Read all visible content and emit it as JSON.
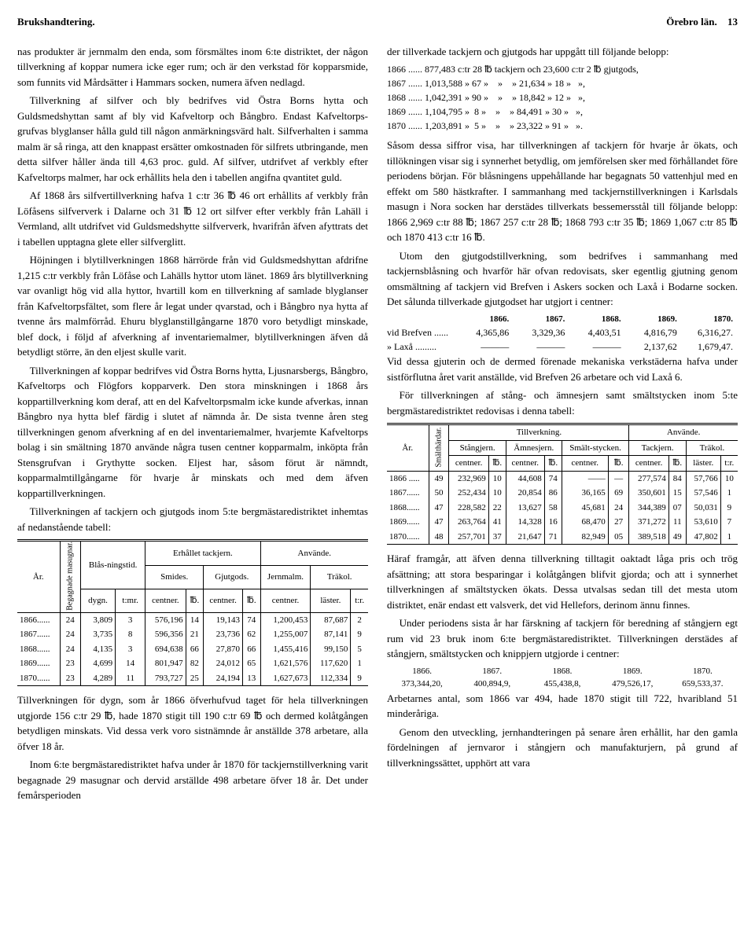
{
  "header": {
    "left": "Brukshandtering.",
    "right_title": "Örebro län.",
    "page": "13"
  },
  "left_col": {
    "p1": "nas produkter är jernmalm den enda, som försmältes inom 6:te distriktet, der någon tillverkning af koppar numera icke eger rum; och är den verkstad för kopparsmide, som funnits vid Mårdsätter i Hammars socken, numera äfven nedlagd.",
    "p2": "Tillverkning af silfver och bly bedrifves vid Östra Borns hytta och Guldsmedshyttan samt af bly vid Kafveltorp och Bångbro. Endast Kafveltorps-grufvas blyglanser hålla guld till någon anmärkningsvärd halt. Silfverhalten i samma malm är så ringa, att den knappast ersätter omkostnaden för silfrets utbringande, men detta silfver håller ända till 4,63 proc. guld. Af silfver, utdrifvet af verkbly efter Kafveltorps malmer, har ock erhållits hela den i tabellen angifna qvantitet guld.",
    "p3": "Af 1868 års silfvertillverkning hafva 1 c:tr 36 ℔ 46 ort erhållits af verkbly från Löfåsens silfververk i Dalarne och 31 ℔ 12 ort silfver efter verkbly från Lahäll i Vermland, allt utdrifvet vid Guldsmedshytte silfververk, hvarifrån äfven afyttrats det i tabellen upptagna glete eller silfverglitt.",
    "p4": "Höjningen i blytillverkningen 1868 härrörde från vid Guldsmedshyttan afdrifne 1,215 c:tr verkbly från Löfåse och Lahälls hyttor utom länet. 1869 års blytillverkning var ovanligt hög vid alla hyttor, hvartill kom en tillverkning af samlade blyglanser från Kafveltorpsfältet, som flere år legat under qvarstad, och i Bångbro nya hytta af tvenne års malmförråd. Ehuru blyglanstillgångarne 1870 voro betydligt minskade, blef dock, i följd af afverkning af inventariemalmer, blytillverkningen äfven då betydligt större, än den eljest skulle varit.",
    "p5": "Tillverkningen af koppar bedrifves vid Östra Borns hytta, Ljusnarsbergs, Bångbro, Kafveltorps och Flögfors kopparverk. Den stora minskningen i 1868 års koppartillverkning kom deraf, att en del Kafveltorpsmalm icke kunde afverkas, innan Bångbro nya hytta blef färdig i slutet af nämnda år. De sista tvenne åren steg tillverkningen genom afverkning af en del inventariemalmer, hvarjemte Kafveltorps bolag i sin smältning 1870 använde några tusen centner kopparmalm, inköpta från Stensgrufvan i Grythytte socken. Eljest har, såsom förut är nämndt, kopparmalmtillgångarne för hvarje år minskats och med dem äfven koppartillverkningen.",
    "p6": "Tillverkningen af tackjern och gjutgods inom 5:te bergmästaredistriktet inhemtas af nedanstående tabell:",
    "p7": "Tillverkningen för dygn, som år 1866 öfverhufvud taget för hela tillverkningen utgjorde 156 c:tr 29 ℔, hade 1870 stigit till 190 c:tr 69 ℔ och dermed kolåtgången betydligen minskats. Vid dessa verk voro sistnämnde år anställde 378 arbetare, alla öfver 18 år.",
    "p8": "Inom 6:te bergmästaredistriktet hafva under år 1870 för tackjernstillverkning varit begagnade 29 masugnar och dervid arställde 498 arbetare öfver 18 år. Det under femårsperioden"
  },
  "table1": {
    "headers": {
      "ar": "År.",
      "beg": "Begagnade masugnar.",
      "blas": "Blås-ningstid.",
      "erhallet": "Erhållet tackjern.",
      "anvande": "Använde.",
      "smides": "Smides.",
      "gjutgods": "Gjutgods.",
      "jernmalm": "Jernmalm.",
      "trakol": "Träkol.",
      "dygn": "dygn.",
      "tmr": "t:mr.",
      "centner": "centner.",
      "tt": "℔.",
      "laster": "läster.",
      "tr": "t:r."
    },
    "rows": [
      {
        "ar": "1866......",
        "beg": "24",
        "dygn": "3,809",
        "tmr": "3",
        "sc": "576,196",
        "st": "14",
        "gc": "19,143",
        "gt": "74",
        "jc": "1,200,453",
        "tl": "87,687",
        "tt": "2"
      },
      {
        "ar": "1867......",
        "beg": "24",
        "dygn": "3,735",
        "tmr": "8",
        "sc": "596,356",
        "st": "21",
        "gc": "23,736",
        "gt": "62",
        "jc": "1,255,007",
        "tl": "87,141",
        "tt": "9"
      },
      {
        "ar": "1868......",
        "beg": "24",
        "dygn": "4,135",
        "tmr": "3",
        "sc": "694,638",
        "st": "66",
        "gc": "27,870",
        "gt": "66",
        "jc": "1,455,416",
        "tl": "99,150",
        "tt": "5"
      },
      {
        "ar": "1869......",
        "beg": "23",
        "dygn": "4,699",
        "tmr": "14",
        "sc": "801,947",
        "st": "82",
        "gc": "24,012",
        "gt": "65",
        "jc": "1,621,576",
        "tl": "117,620",
        "tt": "1"
      },
      {
        "ar": "1870......",
        "beg": "23",
        "dygn": "4,289",
        "tmr": "11",
        "sc": "793,727",
        "st": "25",
        "gc": "24,194",
        "gt": "13",
        "jc": "1,627,673",
        "tl": "112,334",
        "tt": "9"
      }
    ]
  },
  "right_col": {
    "p1": "der tillverkade tackjern och gjutgods har uppgått till följande belopp:",
    "belopp": [
      "1866 ...... 877,483 c:tr 28 ℔ tackjern och 23,600 c:tr 2 ℔ gjutgods,",
      "1867 ...... 1,013,588 » 67 »    »    » 21,634 » 18 »   »,",
      "1868 ...... 1,042,391 » 90 »    »    » 18,842 » 12 »   »,",
      "1869 ...... 1,104,795 »  8 »    »    » 84,491 » 30 »   »,",
      "1870 ...... 1,203,891 »  5 »    »    » 23,322 » 91 »   »."
    ],
    "p2": "Såsom dessa siffror visa, har tillverkningen af tackjern för hvarje år ökats, och tillökningen visar sig i synnerhet betydlig, om jemförelsen sker med förhållandet före periodens början. För blåsningens uppehållande har begagnats 50 vattenhjul med en effekt om 580 hästkrafter. I sammanhang med tackjernstillverkningen i Karlsdals masugn i Nora socken har derstädes tillverkats bessemersstål till följande belopp: 1866 2,969 c:tr 88 ℔; 1867 257 c:tr 28 ℔; 1868 793 c:tr 35 ℔; 1869 1,067 c:tr 85 ℔ och 1870 413 c:tr 16 ℔.",
    "p3": "Utom den gjutgodstillverkning, som bedrifves i sammanhang med tackjernsblåsning och hvarför här ofvan redovisats, sker egentlig gjutning genom omsmältning af tackjern vid Brefven i Askers socken och Laxå i Bodarne socken. Det sålunda tillverkade gjutgodset har utgjort i centner:",
    "series_years": [
      "1866.",
      "1867.",
      "1868.",
      "1869.",
      "1870."
    ],
    "series": [
      {
        "label": "vid Brefven ......",
        "vals": [
          "4,365,86",
          "3,329,36",
          "4,403,51",
          "4,816,79",
          "6,316,27."
        ]
      },
      {
        "label": "»  Laxå .........",
        "vals": [
          "———",
          "———",
          "———",
          "2,137,62",
          "1,679,47."
        ]
      }
    ],
    "p4": "Vid dessa gjuterin och de dermed förenade mekaniska verkstäderna hafva under sistförflutna året varit anställde, vid Brefven 26 arbetare och vid Laxå 6.",
    "p5": "För tillverkningen af stång- och ämnesjern samt smältstycken inom 5:te bergmästaredistriktet redovisas i denna tabell:",
    "p6": "Häraf framgår, att äfven denna tillverkning tilltagit oaktadt låga pris och trög afsättning; att stora besparingar i kolåtgången blifvit gjorda; och att i synnerhet tillverkningen af smältstycken ökats. Dessa utvalsas sedan till det mesta utom distriktet, enär endast ett valsverk, det vid Hellefors, derinom ännu finnes.",
    "p7": "Under periodens sista år har färskning af tackjern för beredning af stångjern egt rum vid 23 bruk inom 6:te bergmästaredistriktet. Tillverkningen derstädes af stångjern, smältstycken och knippjern utgjorde i centner:",
    "centner_years": [
      "1866.",
      "1867.",
      "1868.",
      "1869.",
      "1870."
    ],
    "centner_vals": [
      "373,344,20,",
      "400,894,9,",
      "455,438,8,",
      "479,526,17,",
      "659,533,37."
    ],
    "p8": "Arbetarnes antal, som 1866 var 494, hade 1870 stigit till 722, hvaribland 51 minderåriga.",
    "p9": "Genom den utveckling, jernhandteringen på senare åren erhållit, har den gamla fördelningen af jernvaror i stångjern och manufakturjern, på grund af tillverkningssättet, upphört att vara"
  },
  "table2": {
    "headers": {
      "ar": "År.",
      "smalt": "Smälthärdar.",
      "tillverkning": "Tillverkning.",
      "anvande": "Använde.",
      "stangjern": "Stångjern.",
      "amnesjern": "Ämnesjern.",
      "smaltst": "Smält-stycken.",
      "tackjern": "Tackjern.",
      "trakol": "Träkol.",
      "centner": "centner.",
      "tt": "℔.",
      "laster": "läster.",
      "tr": "t:r."
    },
    "rows": [
      {
        "ar": "1866 .....",
        "sm": "49",
        "sjc": "232,969",
        "sjt": "10",
        "ajc": "44,608",
        "ajt": "74",
        "ssc": "——",
        "sst": "—",
        "tc": "277,574",
        "ttt": "84",
        "tl": "57,766",
        "tr": "10"
      },
      {
        "ar": "1867......",
        "sm": "50",
        "sjc": "252,434",
        "sjt": "10",
        "ajc": "20,854",
        "ajt": "86",
        "ssc": "36,165",
        "sst": "69",
        "tc": "350,601",
        "ttt": "15",
        "tl": "57,546",
        "tr": "1"
      },
      {
        "ar": "1868......",
        "sm": "47",
        "sjc": "228,582",
        "sjt": "22",
        "ajc": "13,627",
        "ajt": "58",
        "ssc": "45,681",
        "sst": "24",
        "tc": "344,389",
        "ttt": "07",
        "tl": "50,031",
        "tr": "9"
      },
      {
        "ar": "1869......",
        "sm": "47",
        "sjc": "263,764",
        "sjt": "41",
        "ajc": "14,328",
        "ajt": "16",
        "ssc": "68,470",
        "sst": "27",
        "tc": "371,272",
        "ttt": "11",
        "tl": "53,610",
        "tr": "7"
      },
      {
        "ar": "1870......",
        "sm": "48",
        "sjc": "257,701",
        "sjt": "37",
        "ajc": "21,647",
        "ajt": "71",
        "ssc": "82,949",
        "sst": "05",
        "tc": "389,518",
        "ttt": "49",
        "tl": "47,802",
        "tr": "1"
      }
    ]
  }
}
